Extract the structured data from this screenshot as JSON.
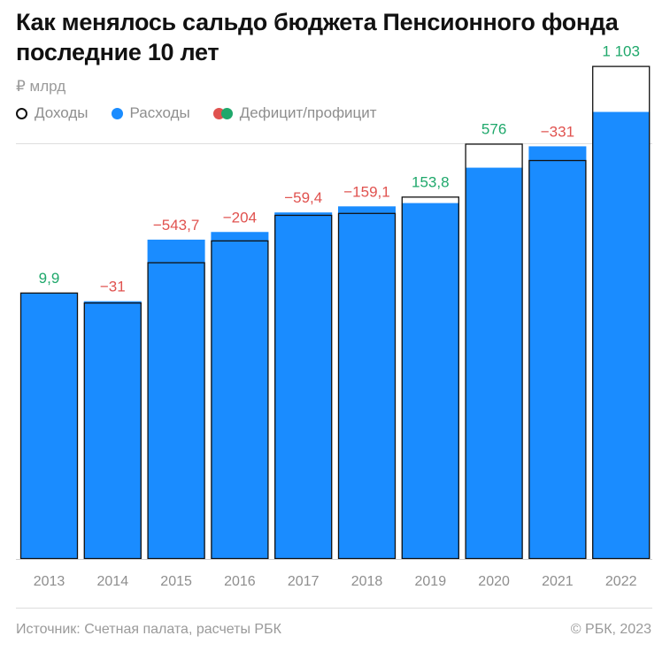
{
  "title": "Как менялось сальдо бюджета Пенсионного фонда последние 10 лет",
  "unit": "₽ млрд",
  "legend": {
    "income": "Доходы",
    "expense": "Расходы",
    "balance": "Дефицит/профицит"
  },
  "colors": {
    "expense": "#1a8cff",
    "income_outline": "#111111",
    "deficit": "#e0524f",
    "surplus": "#1fa86b"
  },
  "chart_data": {
    "type": "bar",
    "categories": [
      "2013",
      "2014",
      "2015",
      "2016",
      "2017",
      "2018",
      "2019",
      "2020",
      "2021",
      "2022"
    ],
    "series": [
      {
        "name": "Доходы",
        "values": [
          6398,
          6159,
          7126,
          7650,
          8264,
          8310,
          8702,
          9974,
          9580,
          11840
        ]
      },
      {
        "name": "Расходы",
        "values": [
          6388,
          6190,
          7670,
          7854,
          8323,
          8469,
          8548,
          9398,
          9911,
          10737
        ]
      },
      {
        "name": "Дефицит/профицит",
        "values": [
          9.9,
          -31,
          -543.7,
          -204,
          -59.4,
          -159.1,
          153.8,
          576,
          -331,
          1103
        ]
      }
    ],
    "balance_labels": [
      "9,9",
      "−31",
      "−543,7",
      "−204",
      "−59,4",
      "−159,1",
      "153,8",
      "576",
      "−331",
      "1 103"
    ],
    "ylim": [
      0,
      13000
    ],
    "grid": false,
    "legend_position": "top-left"
  },
  "footer": {
    "source": "Источник: Счетная палата, расчеты РБК",
    "copyright": "© РБК, 2023"
  }
}
